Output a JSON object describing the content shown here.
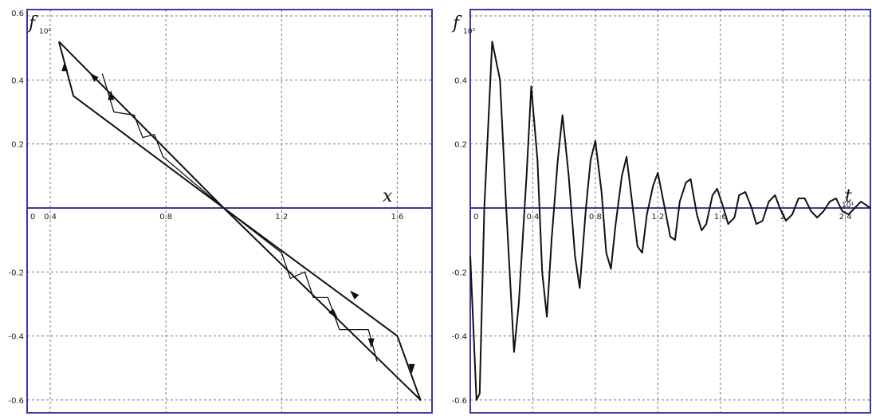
{
  "chart_data": [
    {
      "type": "line",
      "xlabel": "x",
      "ylabel": "f",
      "y_scale_label": "10²",
      "xlim": [
        0.32,
        1.72
      ],
      "ylim": [
        -0.64,
        0.62
      ],
      "x_ticks": [
        {
          "v": 0.4,
          "label": "0.4"
        },
        {
          "v": 0.8,
          "label": "0.8"
        },
        {
          "v": 1.2,
          "label": "1.2"
        },
        {
          "v": 1.6,
          "label": "1.6"
        }
      ],
      "x_origin_label": "0",
      "y_ticks": [
        {
          "v": 0.4,
          "label": "0.4"
        },
        {
          "v": 0.2,
          "label": "0.2"
        },
        {
          "v": -0.2,
          "label": "-0.2"
        },
        {
          "v": -0.4,
          "label": "-0.4"
        },
        {
          "v": -0.6,
          "label": "-0.6"
        }
      ],
      "y_top_label": "0.6",
      "grid": true,
      "series": [
        {
          "values": [
            [
              0.43,
              0.52
            ],
            [
              0.48,
              0.35
            ],
            [
              1.0,
              0.0
            ],
            [
              1.6,
              -0.4
            ],
            [
              1.68,
              -0.6
            ],
            [
              1.0,
              0.0
            ],
            [
              0.43,
              0.52
            ]
          ]
        },
        {
          "values": [
            [
              0.58,
              0.42
            ],
            [
              0.62,
              0.3
            ],
            [
              0.69,
              0.29
            ],
            [
              0.72,
              0.22
            ],
            [
              0.76,
              0.23
            ],
            [
              0.79,
              0.16
            ],
            [
              1.0,
              0.0
            ],
            [
              1.2,
              -0.14
            ],
            [
              1.23,
              -0.22
            ],
            [
              1.28,
              -0.2
            ],
            [
              1.31,
              -0.28
            ],
            [
              1.36,
              -0.28
            ],
            [
              1.4,
              -0.38
            ],
            [
              1.5,
              -0.38
            ],
            [
              1.53,
              -0.48
            ]
          ]
        }
      ]
    },
    {
      "type": "line",
      "xlabel": "t",
      "ylabel": "f",
      "y_scale_label": "10²",
      "x_scale_label": "10¹",
      "xlim": [
        0.0,
        2.56
      ],
      "ylim": [
        -0.64,
        0.62
      ],
      "x_ticks": [
        {
          "v": 0.4,
          "label": "0.4"
        },
        {
          "v": 0.8,
          "label": "0.8"
        },
        {
          "v": 1.2,
          "label": "1.2"
        },
        {
          "v": 1.6,
          "label": "1.6"
        },
        {
          "v": 2.0,
          "label": "2"
        },
        {
          "v": 2.4,
          "label": "2.4"
        }
      ],
      "x_origin_label": "0",
      "y_ticks": [
        {
          "v": 0.4,
          "label": "0.4"
        },
        {
          "v": 0.2,
          "label": "0.2"
        },
        {
          "v": -0.2,
          "label": "-0.2"
        },
        {
          "v": -0.4,
          "label": "-0.4"
        },
        {
          "v": -0.6,
          "label": "-0.6"
        }
      ],
      "grid": true,
      "series": [
        {
          "values": [
            [
              0.0,
              -0.15
            ],
            [
              0.04,
              -0.6
            ],
            [
              0.06,
              -0.58
            ],
            [
              0.09,
              0.0
            ],
            [
              0.14,
              0.52
            ],
            [
              0.19,
              0.4
            ],
            [
              0.23,
              0.0
            ],
            [
              0.28,
              -0.45
            ],
            [
              0.31,
              -0.3
            ],
            [
              0.36,
              0.1
            ],
            [
              0.39,
              0.38
            ],
            [
              0.43,
              0.15
            ],
            [
              0.46,
              -0.2
            ],
            [
              0.49,
              -0.34
            ],
            [
              0.52,
              -0.1
            ],
            [
              0.56,
              0.15
            ],
            [
              0.59,
              0.29
            ],
            [
              0.63,
              0.1
            ],
            [
              0.67,
              -0.15
            ],
            [
              0.7,
              -0.25
            ],
            [
              0.74,
              0.0
            ],
            [
              0.77,
              0.15
            ],
            [
              0.8,
              0.21
            ],
            [
              0.84,
              0.05
            ],
            [
              0.87,
              -0.14
            ],
            [
              0.9,
              -0.19
            ],
            [
              0.93,
              -0.05
            ],
            [
              0.97,
              0.1
            ],
            [
              1.0,
              0.16
            ],
            [
              1.04,
              0.0
            ],
            [
              1.07,
              -0.12
            ],
            [
              1.1,
              -0.14
            ],
            [
              1.13,
              -0.02
            ],
            [
              1.17,
              0.07
            ],
            [
              1.2,
              0.11
            ],
            [
              1.24,
              0.01
            ],
            [
              1.28,
              -0.09
            ],
            [
              1.31,
              -0.1
            ],
            [
              1.34,
              0.02
            ],
            [
              1.38,
              0.08
            ],
            [
              1.41,
              0.09
            ],
            [
              1.45,
              -0.02
            ],
            [
              1.48,
              -0.07
            ],
            [
              1.51,
              -0.05
            ],
            [
              1.55,
              0.04
            ],
            [
              1.58,
              0.06
            ],
            [
              1.62,
              0.0
            ],
            [
              1.65,
              -0.05
            ],
            [
              1.69,
              -0.03
            ],
            [
              1.72,
              0.04
            ],
            [
              1.76,
              0.05
            ],
            [
              1.8,
              0.0
            ],
            [
              1.83,
              -0.05
            ],
            [
              1.87,
              -0.04
            ],
            [
              1.91,
              0.02
            ],
            [
              1.95,
              0.04
            ],
            [
              1.98,
              0.0
            ],
            [
              2.02,
              -0.04
            ],
            [
              2.06,
              -0.02
            ],
            [
              2.1,
              0.03
            ],
            [
              2.14,
              0.03
            ],
            [
              2.18,
              -0.01
            ],
            [
              2.22,
              -0.03
            ],
            [
              2.26,
              -0.01
            ],
            [
              2.3,
              0.02
            ],
            [
              2.34,
              0.03
            ],
            [
              2.38,
              -0.01
            ],
            [
              2.42,
              -0.02
            ],
            [
              2.46,
              0.0
            ],
            [
              2.5,
              0.02
            ],
            [
              2.56,
              0.0
            ]
          ]
        }
      ]
    }
  ]
}
